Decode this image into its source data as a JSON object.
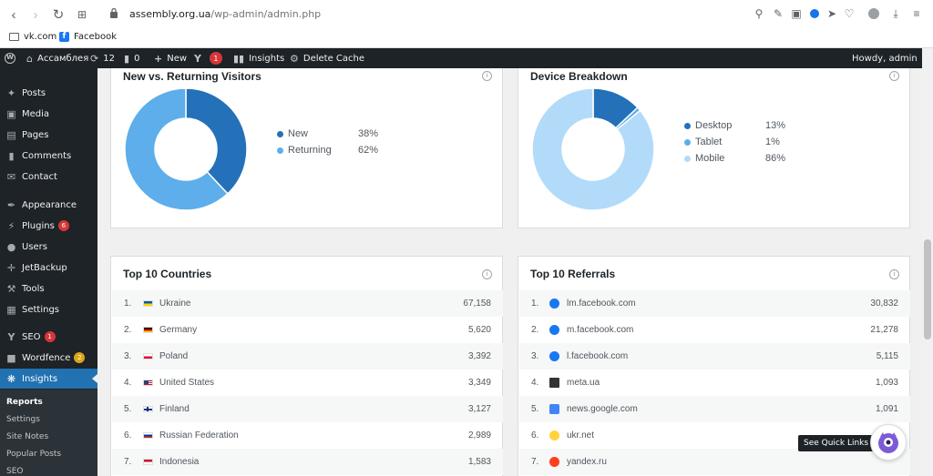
{
  "browser": {
    "url_host": "assembly.org.ua",
    "url_path": "/wp-admin/admin.php",
    "bookmarks": [
      {
        "label": "vk.com",
        "icon": "folder-icon"
      },
      {
        "label": "Facebook",
        "icon": "facebook-icon"
      }
    ]
  },
  "adminbar": {
    "site_name": "Ассамблея",
    "updates_count": "12",
    "comments_count": "0",
    "new_label": "New",
    "yoast_badge": "1",
    "insights_label": "Insights",
    "delete_cache_label": "Delete Cache",
    "howdy": "Howdy, admin"
  },
  "sidebar": {
    "items": [
      {
        "label": "Posts",
        "icon": "pin-icon"
      },
      {
        "label": "Media",
        "icon": "media-icon"
      },
      {
        "label": "Pages",
        "icon": "pages-icon"
      },
      {
        "label": "Comments",
        "icon": "comment-icon"
      },
      {
        "label": "Contact",
        "icon": "mail-icon"
      },
      {
        "label": "Appearance",
        "icon": "brush-icon"
      },
      {
        "label": "Plugins",
        "icon": "plug-icon",
        "badge": "6"
      },
      {
        "label": "Users",
        "icon": "user-icon"
      },
      {
        "label": "JetBackup",
        "icon": "backup-icon"
      },
      {
        "label": "Tools",
        "icon": "wrench-icon"
      },
      {
        "label": "Settings",
        "icon": "settings-icon"
      },
      {
        "label": "SEO",
        "icon": "yoast-icon",
        "badge": "1"
      },
      {
        "label": "Wordfence",
        "icon": "wordfence-icon",
        "badge": "2"
      },
      {
        "label": "Insights",
        "icon": "insights-icon",
        "active": true
      }
    ],
    "submenu": [
      "Reports",
      "Settings",
      "Site Notes",
      "Popular Posts",
      "SEO"
    ]
  },
  "visitors": {
    "title": "New vs. Returning Visitors",
    "legend": [
      {
        "label": "New",
        "value": "38%",
        "color": "#2471b9"
      },
      {
        "label": "Returning",
        "value": "62%",
        "color": "#5daeea"
      }
    ],
    "chart_data": {
      "type": "pie",
      "categories": [
        "New",
        "Returning"
      ],
      "values": [
        38,
        62
      ]
    }
  },
  "devices": {
    "title": "Device Breakdown",
    "legend": [
      {
        "label": "Desktop",
        "value": "13%",
        "color": "#2471b9"
      },
      {
        "label": "Tablet",
        "value": "1%",
        "color": "#5daeea"
      },
      {
        "label": "Mobile",
        "value": "86%",
        "color": "#b2dbfa"
      }
    ],
    "chart_data": {
      "type": "pie",
      "categories": [
        "Desktop",
        "Tablet",
        "Mobile"
      ],
      "values": [
        13,
        1,
        86
      ]
    }
  },
  "countries": {
    "title": "Top 10 Countries",
    "rows": [
      {
        "idx": "1.",
        "name": "Ukraine",
        "value": "67,158",
        "flag": "ua"
      },
      {
        "idx": "2.",
        "name": "Germany",
        "value": "5,620",
        "flag": "de"
      },
      {
        "idx": "3.",
        "name": "Poland",
        "value": "3,392",
        "flag": "pl"
      },
      {
        "idx": "4.",
        "name": "United States",
        "value": "3,349",
        "flag": "us"
      },
      {
        "idx": "5.",
        "name": "Finland",
        "value": "3,127",
        "flag": "fi"
      },
      {
        "idx": "6.",
        "name": "Russian Federation",
        "value": "2,989",
        "flag": "ru"
      },
      {
        "idx": "7.",
        "name": "Indonesia",
        "value": "1,583",
        "flag": "id"
      }
    ]
  },
  "referrals": {
    "title": "Top 10 Referrals",
    "rows": [
      {
        "idx": "1.",
        "name": "lm.facebook.com",
        "value": "30,832",
        "icon": "facebook-icon"
      },
      {
        "idx": "2.",
        "name": "m.facebook.com",
        "value": "21,278",
        "icon": "facebook-icon"
      },
      {
        "idx": "3.",
        "name": "l.facebook.com",
        "value": "5,115",
        "icon": "facebook-icon"
      },
      {
        "idx": "4.",
        "name": "meta.ua",
        "value": "1,093",
        "icon": "meta-icon"
      },
      {
        "idx": "5.",
        "name": "news.google.com",
        "value": "1,091",
        "icon": "google-news-icon"
      },
      {
        "idx": "6.",
        "name": "ukr.net",
        "value": "",
        "icon": "ukrnet-icon"
      },
      {
        "idx": "7.",
        "name": "yandex.ru",
        "value": "",
        "icon": "yandex-icon"
      }
    ]
  },
  "quick_links": {
    "label": "See Quick Links"
  }
}
